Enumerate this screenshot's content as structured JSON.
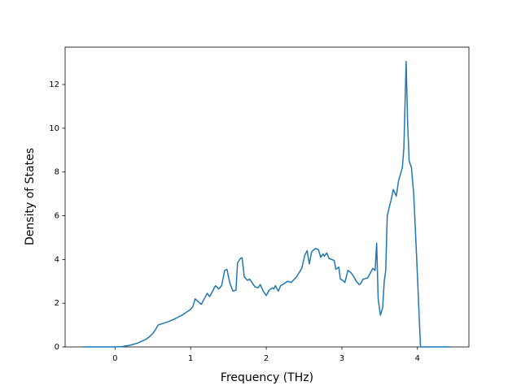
{
  "chart_data": {
    "type": "line",
    "xlabel": "Frequency (THz)",
    "ylabel": "Density of States",
    "xlim": [
      -0.66,
      4.68
    ],
    "ylim": [
      0,
      13.71
    ],
    "xticks": [
      0,
      1,
      2,
      3,
      4
    ],
    "yticks": [
      0,
      2,
      4,
      6,
      8,
      10,
      12
    ],
    "grid": false,
    "series": [
      {
        "color": "#1f77b4",
        "x": [
          -0.42,
          0,
          0.1,
          0.2,
          0.3,
          0.4,
          0.45,
          0.5,
          0.54,
          0.57,
          0.7,
          0.8,
          0.9,
          0.95,
          1.0,
          1.03,
          1.06,
          1.14,
          1.22,
          1.25,
          1.33,
          1.37,
          1.41,
          1.45,
          1.48,
          1.52,
          1.56,
          1.6,
          1.62,
          1.66,
          1.68,
          1.71,
          1.75,
          1.78,
          1.82,
          1.85,
          1.89,
          1.92,
          1.96,
          2.0,
          2.04,
          2.08,
          2.1,
          2.12,
          2.16,
          2.19,
          2.24,
          2.28,
          2.33,
          2.4,
          2.47,
          2.51,
          2.54,
          2.57,
          2.6,
          2.65,
          2.69,
          2.72,
          2.75,
          2.77,
          2.8,
          2.83,
          2.9,
          2.92,
          2.96,
          2.98,
          3.01,
          3.04,
          3.08,
          3.12,
          3.16,
          3.19,
          3.23,
          3.25,
          3.28,
          3.34,
          3.41,
          3.44,
          3.46,
          3.48,
          3.51,
          3.54,
          3.56,
          3.58,
          3.6,
          3.62,
          3.65,
          3.68,
          3.72,
          3.75,
          3.8,
          3.82,
          3.85,
          3.87,
          3.89,
          3.92,
          3.95,
          3.97,
          3.99,
          4.04,
          4.44
        ],
        "values": [
          0,
          0,
          0.02,
          0.08,
          0.18,
          0.33,
          0.45,
          0.62,
          0.82,
          1.0,
          1.15,
          1.3,
          1.48,
          1.6,
          1.72,
          1.85,
          2.2,
          1.95,
          2.45,
          2.3,
          2.8,
          2.65,
          2.8,
          3.5,
          3.55,
          2.9,
          2.55,
          2.6,
          3.85,
          4.05,
          4.08,
          3.2,
          3.05,
          3.1,
          2.9,
          2.75,
          2.7,
          2.85,
          2.55,
          2.35,
          2.6,
          2.7,
          2.65,
          2.8,
          2.55,
          2.8,
          2.9,
          3.0,
          2.95,
          3.2,
          3.6,
          4.2,
          4.4,
          3.8,
          4.35,
          4.5,
          4.45,
          4.1,
          4.25,
          4.15,
          4.3,
          4.05,
          3.95,
          3.55,
          3.65,
          3.1,
          3.05,
          2.95,
          3.5,
          3.4,
          3.2,
          3.0,
          2.85,
          2.9,
          3.1,
          3.15,
          3.6,
          3.5,
          4.75,
          2.2,
          1.45,
          1.8,
          3.0,
          3.5,
          6.0,
          6.3,
          6.7,
          7.2,
          6.9,
          7.6,
          8.2,
          9.1,
          13.05,
          10.2,
          8.5,
          8.2,
          7.0,
          5.5,
          4.0,
          0,
          0
        ]
      }
    ]
  }
}
